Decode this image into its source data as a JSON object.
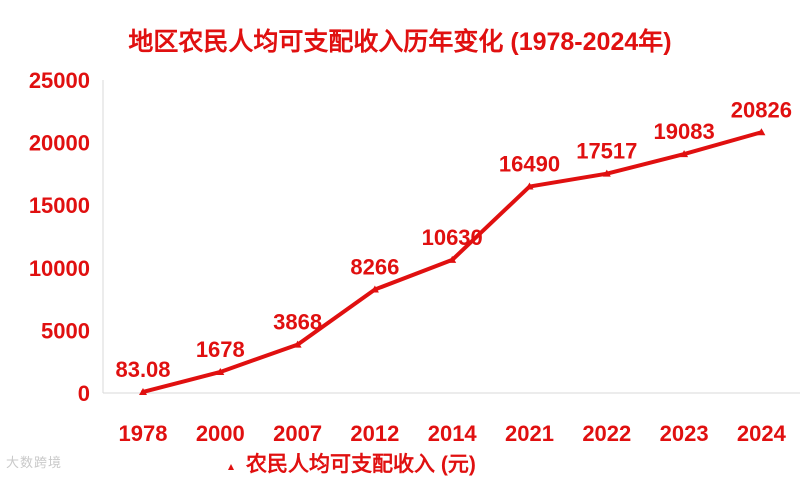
{
  "chart_data": {
    "type": "line",
    "title": "地区农民人均可支配收入历年变化 (1978-2024年)",
    "categories": [
      "1978",
      "2000",
      "2007",
      "2012",
      "2014",
      "2021",
      "2022",
      "2023",
      "2024"
    ],
    "series": [
      {
        "name": "农民人均可支配收入 (元)",
        "values": [
          83.08,
          1678,
          3868,
          8266,
          10630,
          16490,
          17517,
          19083,
          20826
        ],
        "data_labels": [
          "83.08",
          "1678",
          "3868",
          "8266",
          "10630",
          "16490",
          "17517",
          "19083",
          "20826"
        ],
        "color": "#e01010"
      }
    ],
    "ylim": [
      0,
      25000
    ],
    "yticks": [
      "0",
      "5000",
      "10000",
      "15000",
      "20000",
      "25000"
    ],
    "grid": false,
    "legend_position": "bottom"
  },
  "watermark": "大数跨境"
}
